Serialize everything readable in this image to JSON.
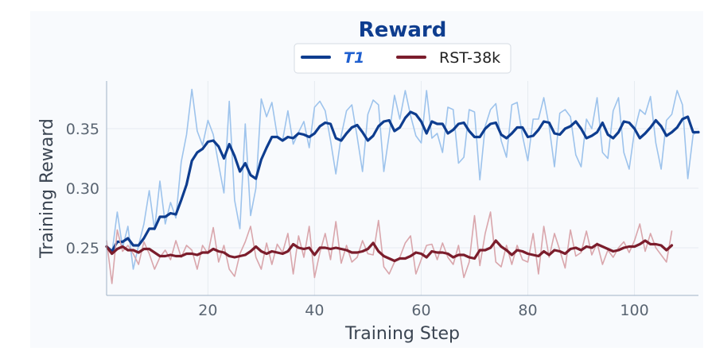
{
  "chart_data": {
    "type": "line",
    "title": "Reward",
    "xlabel": "Training Step",
    "ylabel": "Training Reward",
    "xlim": [
      1,
      112
    ],
    "ylim": [
      0.21,
      0.39
    ],
    "xticks": [
      20,
      40,
      60,
      80,
      100
    ],
    "yticks": [
      0.25,
      0.3,
      0.35
    ],
    "legend_position": "top-center",
    "series": [
      {
        "name": "T1",
        "kind": "raw",
        "color": "#9dc3ec",
        "x": [
          1,
          2,
          3,
          4,
          5,
          6,
          7,
          8,
          9,
          10,
          11,
          12,
          13,
          14,
          15,
          16,
          17,
          18,
          19,
          20,
          21,
          22,
          23,
          24,
          25,
          26,
          27,
          28,
          29,
          30,
          31,
          32,
          33,
          34,
          35,
          36,
          37,
          38,
          39,
          40,
          41,
          42,
          43,
          44,
          45,
          46,
          47,
          48,
          49,
          50,
          51,
          52,
          53,
          54,
          55,
          56,
          57,
          58,
          59,
          60,
          61,
          62,
          63,
          64,
          65,
          66,
          67,
          68,
          69,
          70,
          71,
          72,
          73,
          74,
          75,
          76,
          77,
          78,
          79,
          80,
          81,
          82,
          83,
          84,
          85,
          86,
          87,
          88,
          89,
          90,
          91,
          92,
          93,
          94,
          95,
          96,
          97,
          98,
          99,
          100,
          101,
          102,
          103,
          104,
          105,
          106,
          107,
          108,
          109,
          110,
          111,
          112
        ],
        "y": [
          0.252,
          0.245,
          0.28,
          0.25,
          0.268,
          0.232,
          0.252,
          0.27,
          0.298,
          0.265,
          0.306,
          0.27,
          0.288,
          0.275,
          0.322,
          0.345,
          0.383,
          0.348,
          0.336,
          0.357,
          0.345,
          0.32,
          0.296,
          0.373,
          0.29,
          0.266,
          0.354,
          0.277,
          0.3,
          0.375,
          0.36,
          0.372,
          0.344,
          0.34,
          0.365,
          0.337,
          0.347,
          0.356,
          0.334,
          0.368,
          0.373,
          0.365,
          0.34,
          0.312,
          0.344,
          0.365,
          0.37,
          0.343,
          0.314,
          0.362,
          0.374,
          0.37,
          0.314,
          0.345,
          0.378,
          0.358,
          0.382,
          0.361,
          0.344,
          0.338,
          0.382,
          0.342,
          0.346,
          0.33,
          0.368,
          0.366,
          0.321,
          0.326,
          0.366,
          0.364,
          0.307,
          0.352,
          0.366,
          0.371,
          0.34,
          0.326,
          0.37,
          0.372,
          0.344,
          0.323,
          0.358,
          0.358,
          0.376,
          0.352,
          0.318,
          0.363,
          0.366,
          0.36,
          0.328,
          0.318,
          0.358,
          0.35,
          0.376,
          0.33,
          0.325,
          0.365,
          0.376,
          0.33,
          0.316,
          0.348,
          0.366,
          0.362,
          0.377,
          0.338,
          0.316,
          0.357,
          0.362,
          0.382,
          0.37,
          0.308,
          0.345,
          0.348
        ]
      },
      {
        "name": "T1",
        "kind": "smoothed",
        "color": "#0e3d8f",
        "x": [
          1,
          2,
          3,
          4,
          5,
          6,
          7,
          8,
          9,
          10,
          11,
          12,
          13,
          14,
          15,
          16,
          17,
          18,
          19,
          20,
          21,
          22,
          23,
          24,
          25,
          26,
          27,
          28,
          29,
          30,
          31,
          32,
          33,
          34,
          35,
          36,
          37,
          38,
          39,
          40,
          41,
          42,
          43,
          44,
          45,
          46,
          47,
          48,
          49,
          50,
          51,
          52,
          53,
          54,
          55,
          56,
          57,
          58,
          59,
          60,
          61,
          62,
          63,
          64,
          65,
          66,
          67,
          68,
          69,
          70,
          71,
          72,
          73,
          74,
          75,
          76,
          77,
          78,
          79,
          80,
          81,
          82,
          83,
          84,
          85,
          86,
          87,
          88,
          89,
          90,
          91,
          92,
          93,
          94,
          95,
          96,
          97,
          98,
          99,
          100,
          101,
          102,
          103,
          104,
          105,
          106,
          107,
          108,
          109,
          110,
          111,
          112
        ],
        "y": [
          0.251,
          0.247,
          0.255,
          0.255,
          0.258,
          0.252,
          0.252,
          0.258,
          0.266,
          0.266,
          0.276,
          0.276,
          0.279,
          0.278,
          0.29,
          0.303,
          0.323,
          0.33,
          0.333,
          0.339,
          0.34,
          0.335,
          0.325,
          0.337,
          0.327,
          0.314,
          0.321,
          0.311,
          0.308,
          0.324,
          0.334,
          0.343,
          0.343,
          0.34,
          0.343,
          0.342,
          0.346,
          0.345,
          0.343,
          0.346,
          0.352,
          0.355,
          0.354,
          0.342,
          0.34,
          0.346,
          0.351,
          0.353,
          0.347,
          0.34,
          0.344,
          0.352,
          0.356,
          0.357,
          0.348,
          0.351,
          0.359,
          0.364,
          0.362,
          0.356,
          0.346,
          0.356,
          0.354,
          0.354,
          0.346,
          0.349,
          0.354,
          0.355,
          0.348,
          0.343,
          0.343,
          0.35,
          0.354,
          0.355,
          0.345,
          0.342,
          0.346,
          0.351,
          0.351,
          0.343,
          0.344,
          0.349,
          0.356,
          0.355,
          0.346,
          0.345,
          0.35,
          0.352,
          0.356,
          0.35,
          0.342,
          0.344,
          0.347,
          0.355,
          0.345,
          0.342,
          0.347,
          0.356,
          0.355,
          0.35,
          0.342,
          0.346,
          0.351,
          0.357,
          0.352,
          0.344,
          0.347,
          0.351,
          0.358,
          0.36,
          0.347,
          0.347
        ]
      },
      {
        "name": "RST-38k",
        "kind": "raw",
        "color": "#d9a6ac",
        "x": [
          1,
          2,
          3,
          4,
          5,
          6,
          7,
          8,
          9,
          10,
          11,
          12,
          13,
          14,
          15,
          16,
          17,
          18,
          19,
          20,
          21,
          22,
          23,
          24,
          25,
          26,
          27,
          28,
          29,
          30,
          31,
          32,
          33,
          34,
          35,
          36,
          37,
          38,
          39,
          40,
          41,
          42,
          43,
          44,
          45,
          46,
          47,
          48,
          49,
          50,
          51,
          52,
          53,
          54,
          55,
          56,
          57,
          58,
          59,
          60,
          61,
          62,
          63,
          64,
          65,
          66,
          67,
          68,
          69,
          70,
          71,
          72,
          73,
          74,
          75,
          76,
          77,
          78,
          79,
          80,
          81,
          82,
          83,
          84,
          85,
          86,
          87,
          88,
          89,
          90,
          91,
          92,
          93,
          94,
          95,
          96,
          97,
          98,
          99,
          100,
          101,
          102,
          103,
          104,
          105,
          106,
          107
        ],
        "y": [
          0.256,
          0.22,
          0.265,
          0.247,
          0.252,
          0.245,
          0.236,
          0.255,
          0.245,
          0.232,
          0.242,
          0.248,
          0.24,
          0.256,
          0.242,
          0.252,
          0.248,
          0.232,
          0.252,
          0.245,
          0.267,
          0.238,
          0.252,
          0.232,
          0.226,
          0.245,
          0.255,
          0.268,
          0.242,
          0.232,
          0.254,
          0.236,
          0.253,
          0.246,
          0.262,
          0.228,
          0.26,
          0.242,
          0.268,
          0.225,
          0.246,
          0.262,
          0.24,
          0.272,
          0.237,
          0.252,
          0.238,
          0.242,
          0.256,
          0.245,
          0.244,
          0.273,
          0.234,
          0.228,
          0.238,
          0.242,
          0.254,
          0.26,
          0.228,
          0.24,
          0.252,
          0.253,
          0.24,
          0.254,
          0.242,
          0.236,
          0.252,
          0.225,
          0.238,
          0.277,
          0.235,
          0.262,
          0.28,
          0.238,
          0.234,
          0.252,
          0.236,
          0.252,
          0.24,
          0.238,
          0.262,
          0.228,
          0.268,
          0.242,
          0.262,
          0.248,
          0.233,
          0.265,
          0.243,
          0.246,
          0.264,
          0.244,
          0.254,
          0.236,
          0.248,
          0.242,
          0.25,
          0.255,
          0.246,
          0.256,
          0.27,
          0.247,
          0.262,
          0.25,
          0.244,
          0.238,
          0.264
        ]
      },
      {
        "name": "RST-38k",
        "kind": "smoothed",
        "color": "#7b1d2c",
        "x": [
          1,
          2,
          3,
          4,
          5,
          6,
          7,
          8,
          9,
          10,
          11,
          12,
          13,
          14,
          15,
          16,
          17,
          18,
          19,
          20,
          21,
          22,
          23,
          24,
          25,
          26,
          27,
          28,
          29,
          30,
          31,
          32,
          33,
          34,
          35,
          36,
          37,
          38,
          39,
          40,
          41,
          42,
          43,
          44,
          45,
          46,
          47,
          48,
          49,
          50,
          51,
          52,
          53,
          54,
          55,
          56,
          57,
          58,
          59,
          60,
          61,
          62,
          63,
          64,
          65,
          66,
          67,
          68,
          69,
          70,
          71,
          72,
          73,
          74,
          75,
          76,
          77,
          78,
          79,
          80,
          81,
          82,
          83,
          84,
          85,
          86,
          87,
          88,
          89,
          90,
          91,
          92,
          93,
          94,
          95,
          96,
          97,
          98,
          99,
          100,
          101,
          102,
          103,
          104,
          105,
          106,
          107
        ],
        "y": [
          0.251,
          0.245,
          0.249,
          0.251,
          0.248,
          0.248,
          0.246,
          0.249,
          0.249,
          0.246,
          0.243,
          0.243,
          0.244,
          0.243,
          0.243,
          0.245,
          0.245,
          0.244,
          0.246,
          0.246,
          0.249,
          0.247,
          0.246,
          0.243,
          0.242,
          0.243,
          0.244,
          0.247,
          0.251,
          0.247,
          0.245,
          0.247,
          0.246,
          0.245,
          0.247,
          0.253,
          0.25,
          0.249,
          0.25,
          0.244,
          0.25,
          0.25,
          0.249,
          0.25,
          0.249,
          0.248,
          0.246,
          0.246,
          0.247,
          0.249,
          0.254,
          0.247,
          0.243,
          0.241,
          0.239,
          0.241,
          0.241,
          0.243,
          0.246,
          0.245,
          0.242,
          0.247,
          0.246,
          0.246,
          0.245,
          0.242,
          0.244,
          0.244,
          0.242,
          0.241,
          0.248,
          0.248,
          0.25,
          0.256,
          0.251,
          0.248,
          0.244,
          0.248,
          0.247,
          0.245,
          0.244,
          0.243,
          0.247,
          0.244,
          0.248,
          0.247,
          0.245,
          0.249,
          0.25,
          0.248,
          0.251,
          0.25,
          0.253,
          0.251,
          0.249,
          0.247,
          0.248,
          0.25,
          0.251,
          0.251,
          0.253,
          0.256,
          0.253,
          0.253,
          0.252,
          0.248,
          0.252
        ]
      }
    ]
  }
}
